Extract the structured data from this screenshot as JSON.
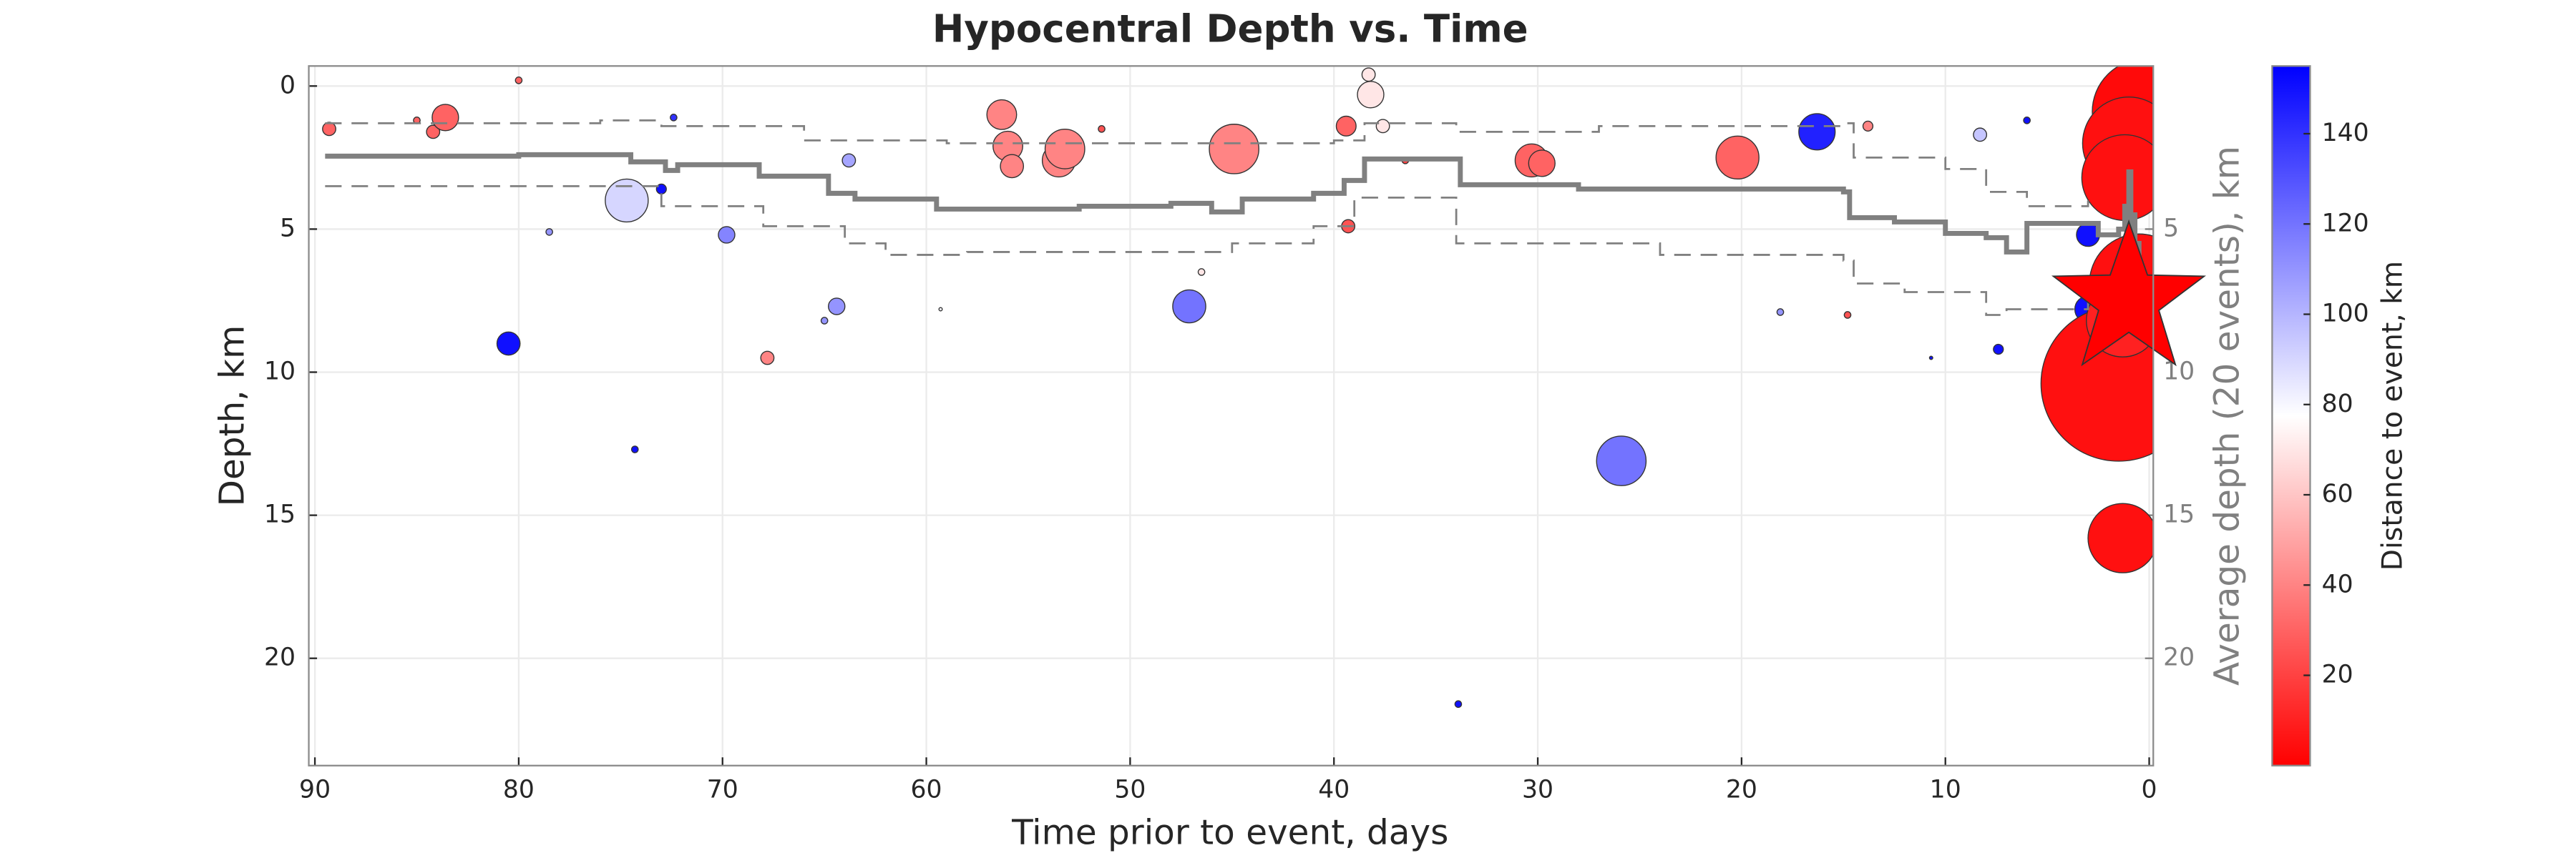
{
  "chart_data": {
    "type": "scatter",
    "title": "Hypocentral Depth vs. Time",
    "xlabel": "Time prior to event, days",
    "ylabel": "Depth, km",
    "y2label": "Average depth (20 events), km",
    "colorbar_label": "Distance to event, km",
    "xlim": [
      90.3,
      -0.2
    ],
    "xticks": [
      90,
      80,
      70,
      60,
      50,
      40,
      30,
      20,
      10,
      0
    ],
    "ylim": [
      -0.7,
      23.75
    ],
    "yticks": [
      0,
      5,
      10,
      15,
      20
    ],
    "y2lim": [
      -0.7,
      23.75
    ],
    "y2ticks": [
      5,
      10,
      15,
      20
    ],
    "clim": [
      0,
      155
    ],
    "cticks": [
      20,
      40,
      60,
      80,
      100,
      120,
      140
    ],
    "colormap": [
      "#ff0000",
      "#ffffff",
      "#0000ff"
    ],
    "grid": true,
    "x": [
      89.3,
      84.2,
      83.6,
      85,
      80,
      80.5,
      74.7,
      73,
      72.4,
      78.5,
      74.3,
      69.8,
      67.8,
      64.4,
      65,
      63.8,
      56.3,
      56,
      55.8,
      53.5,
      53.2,
      51.4,
      59.3,
      47.1,
      44.9,
      46.5,
      39.4,
      39.3,
      38.2,
      38.3,
      37.6,
      36.5,
      33.9,
      30.3,
      29.8,
      25.9,
      20.2,
      16.3,
      18.1,
      14.8,
      13.8,
      8.3,
      7.4,
      10.7,
      6,
      3.0,
      3.0,
      1.3,
      1.0,
      0.8,
      1.5,
      0.2,
      1.0,
      1.2,
      0.5,
      1.3
    ],
    "y": [
      1.5,
      1.6,
      1.1,
      1.2,
      -0.2,
      9.0,
      4.0,
      3.6,
      1.1,
      5.1,
      12.7,
      5.2,
      9.5,
      7.7,
      8.2,
      2.6,
      1.0,
      2.1,
      2.8,
      2.6,
      2.2,
      1.5,
      7.8,
      7.7,
      2.2,
      6.5,
      1.4,
      4.9,
      0.3,
      -0.4,
      1.4,
      2.6,
      21.6,
      2.6,
      2.7,
      13.1,
      2.5,
      1.6,
      7.9,
      8.0,
      1.4,
      1.7,
      9.2,
      9.5,
      1.2,
      5.2,
      7.8,
      15.8,
      12.5,
      11.3,
      10.4,
      0.9,
      2.0,
      3.2,
      6.9,
      8.2
    ],
    "sizes": [
      4,
      4,
      8,
      2,
      2,
      7,
      13,
      3,
      2,
      2,
      2,
      5,
      4,
      5,
      2,
      4,
      9,
      9,
      7,
      10,
      12,
      2,
      1,
      10,
      15,
      2,
      6,
      4,
      8,
      4,
      4,
      2,
      2,
      10,
      8,
      15,
      13,
      11,
      2,
      2,
      3,
      4,
      3,
      1,
      2,
      7,
      8,
      21,
      8,
      12,
      47,
      32,
      28,
      26,
      30,
      22
    ],
    "color_values": [
      30,
      30,
      30,
      30,
      30,
      150,
      90,
      150,
      140,
      110,
      150,
      115,
      40,
      110,
      110,
      105,
      40,
      40,
      40,
      40,
      40,
      25,
      80,
      120,
      40,
      70,
      30,
      25,
      70,
      70,
      70,
      20,
      150,
      30,
      30,
      120,
      30,
      145,
      110,
      25,
      40,
      95,
      150,
      150,
      150,
      150,
      150,
      5,
      15,
      10,
      5,
      3,
      5,
      5,
      5,
      10
    ],
    "mainshock": {
      "x": 1.0,
      "y": 7.5,
      "size": 48,
      "color": "#ff0000"
    },
    "average": {
      "axis": "y2",
      "color": "#808080",
      "dashed": false,
      "x": [
        89.5,
        80,
        75.5,
        74.5,
        72.8,
        72.2,
        69.5,
        68.2,
        66,
        64.8,
        63.5,
        60,
        59.5,
        56,
        52.5,
        48,
        46,
        44.5,
        41,
        39.5,
        38.5,
        34,
        33.8,
        28,
        22.3,
        15,
        14.7,
        12.5,
        10,
        8,
        7,
        6,
        3.5,
        2.5,
        1.5,
        1.2,
        1.1,
        1.0,
        0.9,
        0.8,
        0.7,
        0.6,
        0.5
      ],
      "y": [
        2.45,
        2.4,
        2.4,
        2.65,
        2.95,
        2.75,
        2.75,
        3.15,
        3.15,
        3.75,
        3.95,
        3.95,
        4.3,
        4.3,
        4.2,
        4.1,
        4.4,
        3.95,
        3.75,
        3.3,
        2.55,
        2.55,
        3.45,
        3.6,
        3.6,
        3.7,
        4.6,
        4.75,
        5.15,
        5.3,
        5.8,
        4.8,
        4.8,
        5.2,
        5.0,
        4.2,
        6.9,
        3.0,
        7.8,
        4.5,
        8.5,
        5.5,
        7.2
      ]
    },
    "upper": {
      "axis": "y2",
      "color": "#808080",
      "dashed": true,
      "x": [
        89.5,
        76,
        73,
        66,
        59,
        40,
        38.5,
        34,
        27,
        15,
        14.5,
        10,
        8,
        6,
        3
      ],
      "y": [
        1.3,
        1.2,
        1.4,
        1.9,
        2.0,
        1.9,
        1.3,
        1.6,
        1.4,
        1.3,
        2.5,
        2.9,
        3.7,
        4.2,
        4.0
      ]
    },
    "lower": {
      "axis": "y2",
      "color": "#808080",
      "dashed": true,
      "x": [
        89.5,
        75,
        73,
        68,
        64,
        62,
        58,
        48,
        45,
        41,
        39,
        34,
        24,
        15,
        14.5,
        12,
        8,
        7,
        3
      ],
      "y": [
        3.5,
        3.5,
        4.2,
        4.9,
        5.5,
        5.9,
        5.8,
        5.8,
        5.5,
        4.9,
        3.9,
        5.5,
        5.9,
        6.1,
        6.9,
        7.2,
        8.0,
        7.8,
        7.5
      ]
    }
  }
}
